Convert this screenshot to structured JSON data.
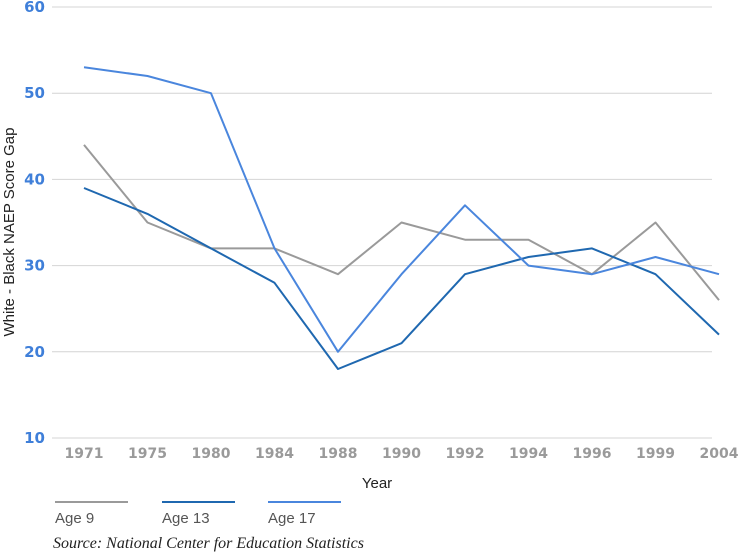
{
  "chart_data": {
    "type": "line",
    "title": "",
    "xlabel": "Year",
    "ylabel": "White - Black NAEP Score Gap",
    "ylim": [
      10,
      60
    ],
    "yticks": [
      10,
      20,
      30,
      40,
      50,
      60
    ],
    "categories": [
      "1971",
      "1975",
      "1980",
      "1984",
      "1988",
      "1990",
      "1992",
      "1994",
      "1996",
      "1999",
      "2004"
    ],
    "series": [
      {
        "name": "Age 9",
        "color": "#9a9a9a",
        "values": [
          44,
          35,
          32,
          32,
          29,
          35,
          33,
          33,
          29,
          35,
          26
        ]
      },
      {
        "name": "Age 13",
        "color": "#1f68b0",
        "values": [
          39,
          36,
          32,
          28,
          18,
          21,
          29,
          31,
          32,
          29,
          22
        ]
      },
      {
        "name": "Age 17",
        "color": "#4a86dd",
        "values": [
          53,
          52,
          50,
          32,
          20,
          29,
          37,
          30,
          29,
          31,
          29
        ]
      }
    ],
    "grid": true,
    "legend_position": "bottom-left"
  },
  "source": "Source: National Center for Education Statistics"
}
